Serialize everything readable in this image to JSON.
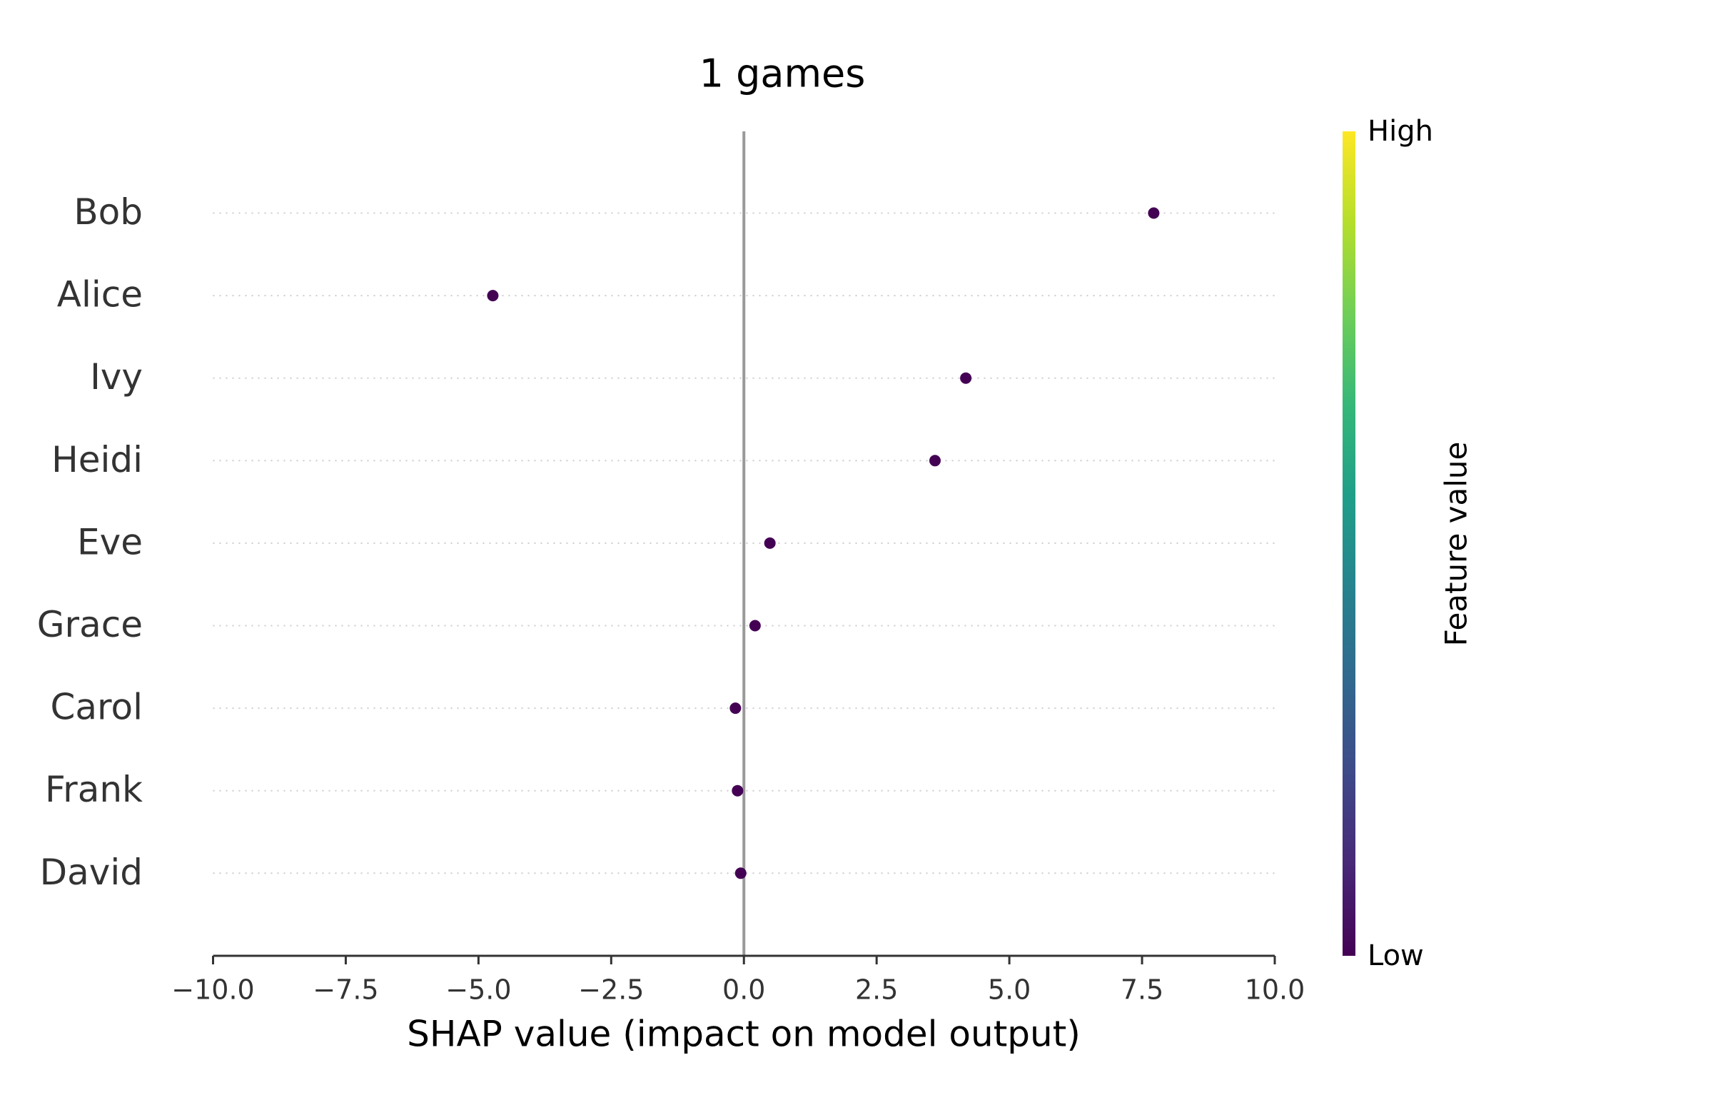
{
  "chart_data": {
    "type": "scatter",
    "title": "1 games",
    "x_label": "SHAP value (impact on model output)",
    "categories": [
      "Bob",
      "Alice",
      "Ivy",
      "Heidi",
      "Eve",
      "Grace",
      "Carol",
      "Frank",
      "David"
    ],
    "series": [
      {
        "color": "#440154",
        "values": [
          7.72,
          -4.73,
          4.18,
          3.6,
          0.49,
          0.21,
          -0.16,
          -0.12,
          -0.06
        ]
      }
    ],
    "xlim": [
      -10,
      10
    ],
    "xticks": [
      {
        "value": -10,
        "label": "−10.0"
      },
      {
        "value": -7.5,
        "label": "−7.5"
      },
      {
        "value": -5,
        "label": "−5.0"
      },
      {
        "value": -2.5,
        "label": "−2.5"
      },
      {
        "value": 0,
        "label": "0.0"
      },
      2.5,
      {
        "value": 5,
        "label": "5.0"
      },
      7.5,
      {
        "value": 10,
        "label": "10.0"
      }
    ],
    "colorbar": {
      "label": "Feature value",
      "high_label": "High",
      "low_label": "Low",
      "colors": [
        "#440154",
        "#482878",
        "#3e4a89",
        "#31688e",
        "#26828e",
        "#1f9e89",
        "#35b779",
        "#6ece58",
        "#b5de2b",
        "#fde725"
      ]
    }
  }
}
